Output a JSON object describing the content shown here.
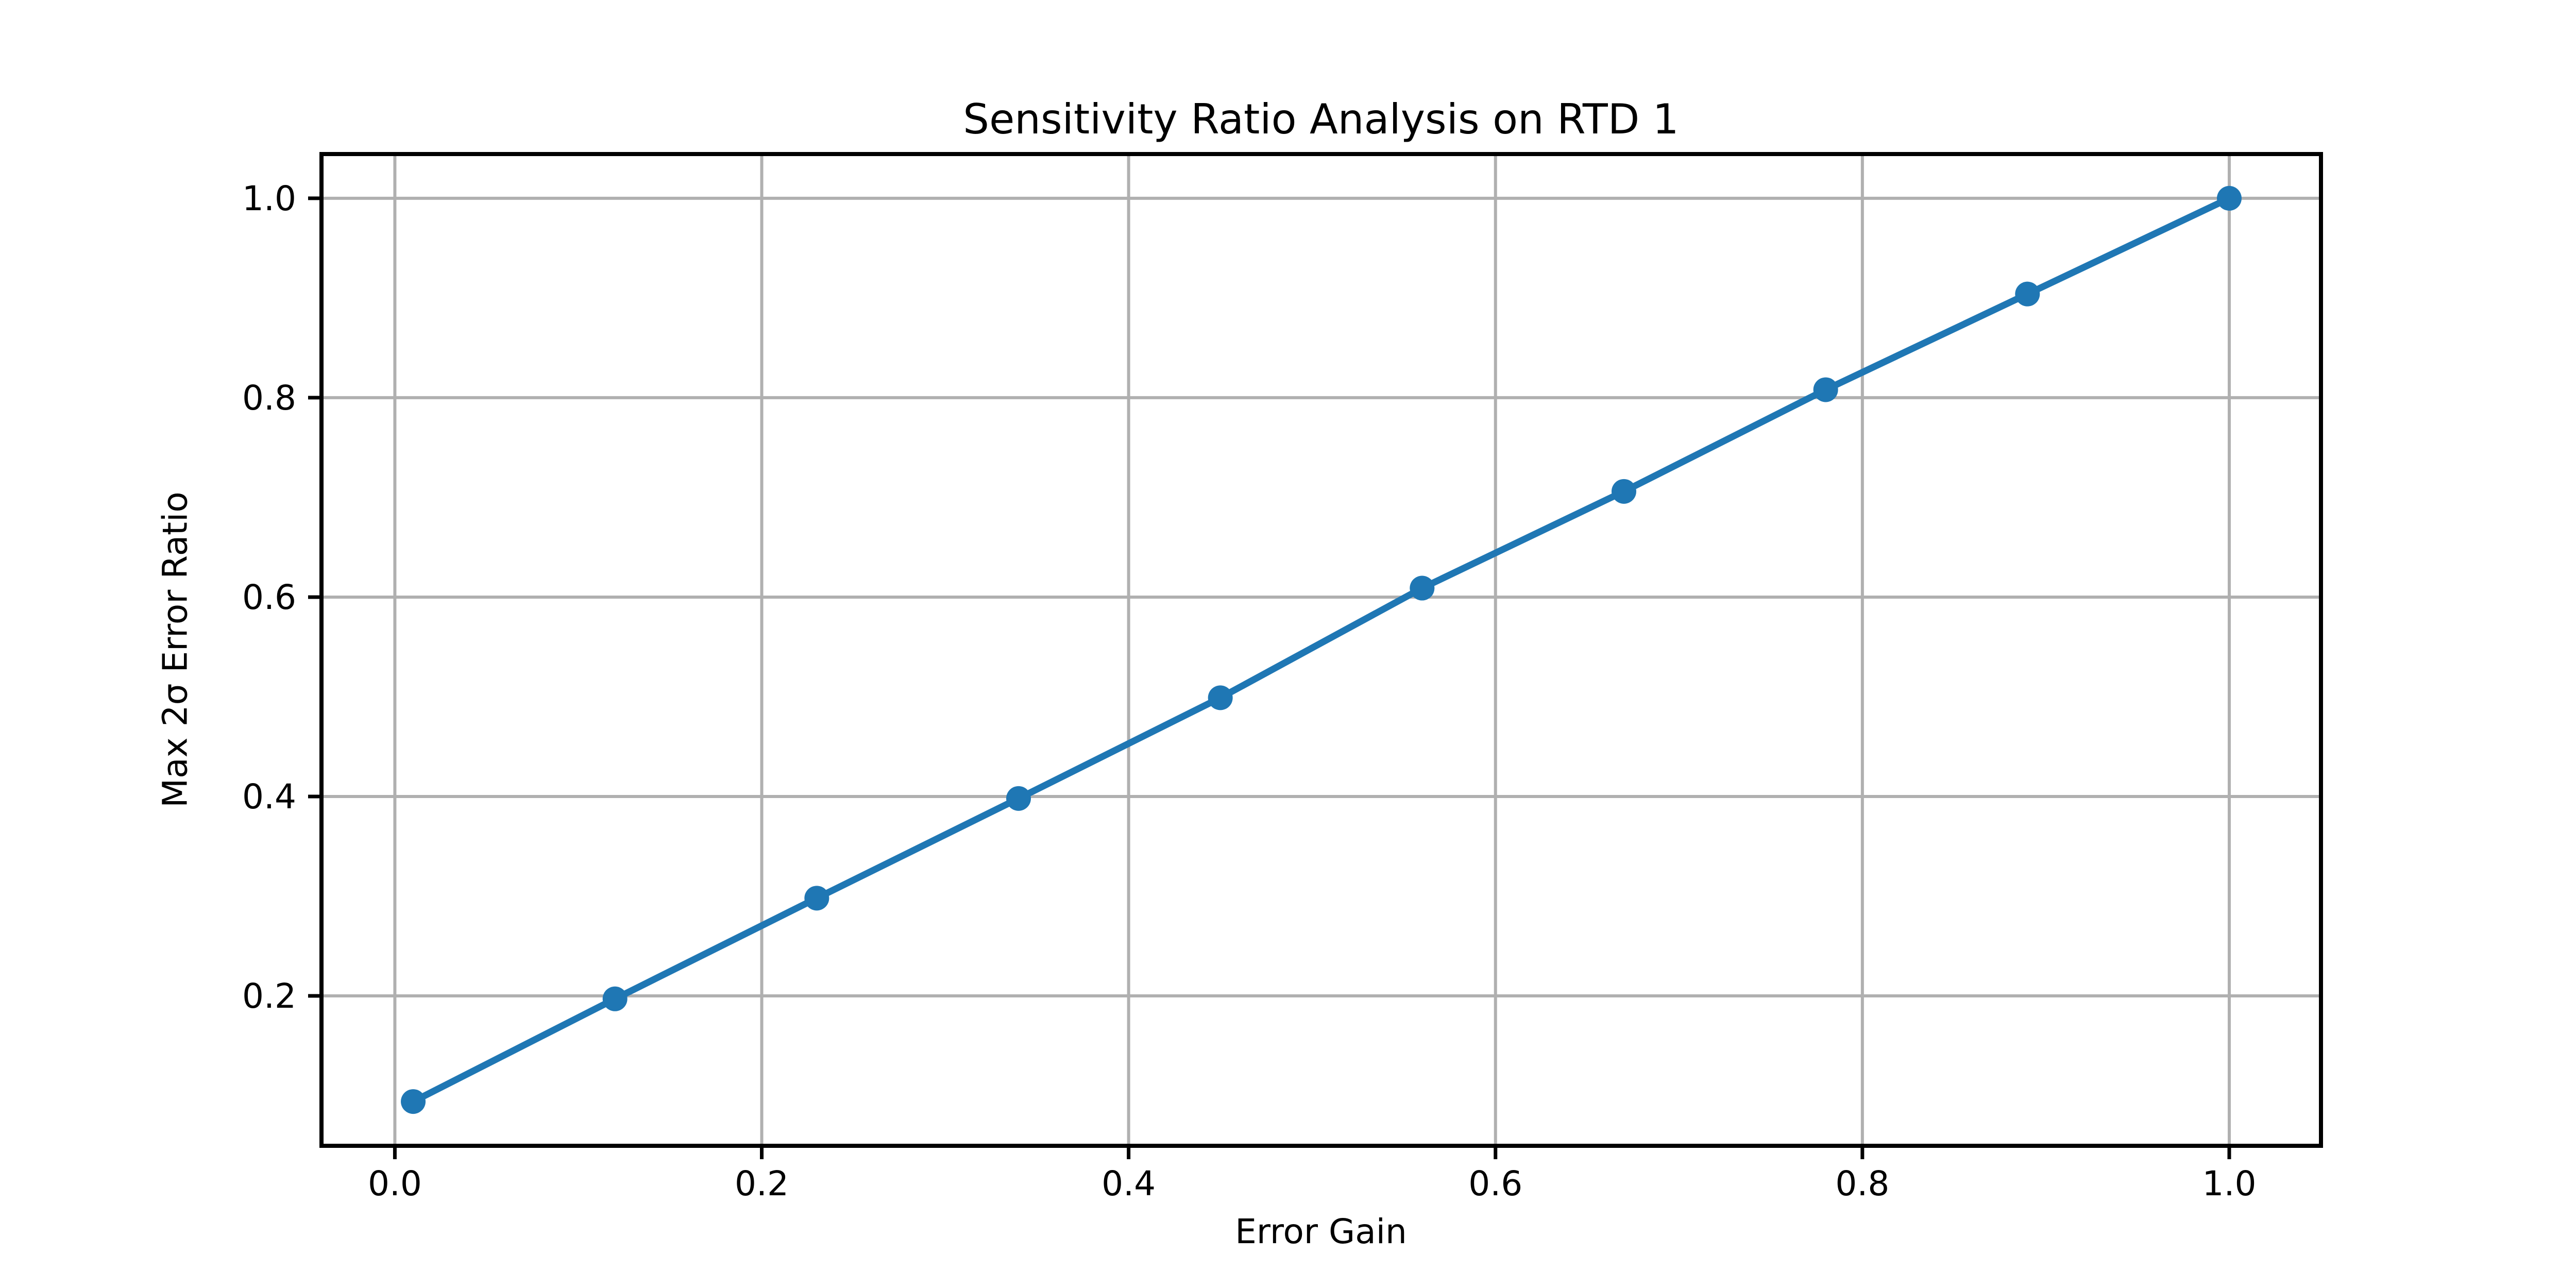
{
  "chart_data": {
    "type": "line",
    "title": "Sensitivity Ratio Analysis on RTD 1",
    "xlabel": "Error Gain",
    "ylabel": "Max 2σ Error Ratio",
    "x": [
      0.01,
      0.12,
      0.23,
      0.34,
      0.45,
      0.56,
      0.67,
      0.78,
      0.89,
      1.0
    ],
    "y": [
      0.094,
      0.197,
      0.298,
      0.398,
      0.499,
      0.609,
      0.706,
      0.808,
      0.904,
      1.0
    ],
    "xticks": [
      0.0,
      0.2,
      0.4,
      0.6,
      0.8,
      1.0
    ],
    "yticks": [
      0.2,
      0.4,
      0.6,
      0.8,
      1.0
    ],
    "xtick_labels": [
      "0.0",
      "0.2",
      "0.4",
      "0.6",
      "0.8",
      "1.0"
    ],
    "ytick_labels": [
      "0.2",
      "0.4",
      "0.6",
      "0.8",
      "1.0"
    ],
    "xlim": [
      -0.04,
      1.05
    ],
    "ylim": [
      0.0496,
      1.0444
    ],
    "grid": true,
    "legend": false,
    "marker": "o",
    "line_color": "#1f77b4",
    "marker_color": "#1f77b4",
    "grid_color": "#b0b0b0",
    "spine_color": "#000000",
    "background_color": "#ffffff"
  }
}
